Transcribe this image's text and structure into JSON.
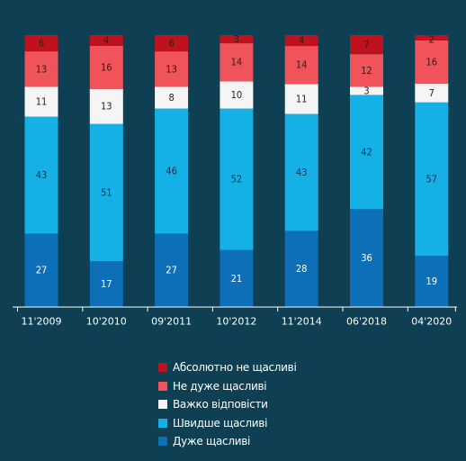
{
  "chart_data": {
    "type": "bar",
    "stacked": true,
    "normalized_percent": true,
    "categories": [
      "11'2009",
      "10'2010",
      "09'2011",
      "10'2012",
      "11'2014",
      "06'2018",
      "04'2020"
    ],
    "series": [
      {
        "name": "Дуже щасливі",
        "color": "#0d6fb8",
        "label_color": "#ffffff",
        "values": [
          27,
          17,
          27,
          21,
          28,
          36,
          19
        ]
      },
      {
        "name": "Швидше щасливі",
        "color": "#15b0e6",
        "label_color": "#12324a",
        "values": [
          43,
          51,
          46,
          52,
          43,
          42,
          57
        ]
      },
      {
        "name": "Важко відповісти",
        "color": "#f5f5f5",
        "label_color": "#222222",
        "values": [
          11,
          13,
          8,
          10,
          11,
          3,
          7
        ]
      },
      {
        "name": "Не дуже щасливі",
        "color": "#f0545a",
        "label_color": "#222222",
        "values": [
          13,
          16,
          13,
          14,
          14,
          12,
          16
        ]
      },
      {
        "name": "Абсолютно не щасливі",
        "color": "#c0121e",
        "label_color": "#222222",
        "values": [
          6,
          4,
          6,
          3,
          4,
          7,
          2
        ]
      }
    ],
    "legend_order": [
      "Абсолютно не щасливі",
      "Не дуже щасливі",
      "Важко відповісти",
      "Швидше щасливі",
      "Дуже щасливі"
    ],
    "legend_position": "bottom-center",
    "grid": false,
    "axis_line_color": "#ffffff",
    "background": "#0e3f52"
  }
}
